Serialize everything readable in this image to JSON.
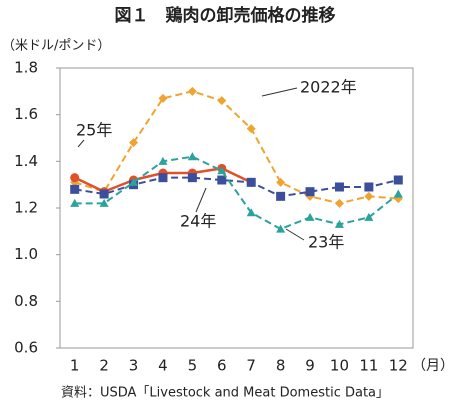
{
  "chart_data": {
    "type": "line",
    "title": "図１　鶏肉の卸売価格の推移",
    "y_label": "（米ドル/ポンド）",
    "x_label": "（月）",
    "source": "資料：USDA「Livestock and Meat Domestic Data」",
    "categories": [
      "1",
      "2",
      "3",
      "4",
      "5",
      "6",
      "7",
      "8",
      "9",
      "10",
      "11",
      "12"
    ],
    "ylim": [
      0.6,
      1.8
    ],
    "yticks": [
      0.6,
      0.8,
      {
        "value": 1.0,
        "label": "1.0"
      },
      1.2,
      1.4,
      1.6,
      1.8
    ],
    "series": [
      {
        "name": "2022年",
        "color": "#f0a32f",
        "marker": "diamond",
        "dash": true,
        "values": [
          1.31,
          1.27,
          1.48,
          1.67,
          1.7,
          1.66,
          1.54,
          1.31,
          1.25,
          1.22,
          1.25,
          1.24
        ]
      },
      {
        "name": "25年",
        "color": "#e0502a",
        "marker": "circle",
        "dash": false,
        "values": [
          1.33,
          1.27,
          1.32,
          1.35,
          1.35,
          1.37,
          1.31,
          null,
          null,
          null,
          null,
          null
        ]
      },
      {
        "name": "24年",
        "color": "#3b4f9c",
        "marker": "square",
        "dash": true,
        "values": [
          1.28,
          1.26,
          1.3,
          1.33,
          1.33,
          1.32,
          1.31,
          1.25,
          1.27,
          1.29,
          1.29,
          1.32
        ]
      },
      {
        "name": "23年",
        "color": "#2aa39b",
        "marker": "triangle",
        "dash": true,
        "values": [
          1.22,
          1.22,
          1.31,
          1.4,
          1.42,
          1.36,
          1.18,
          1.11,
          1.16,
          1.13,
          1.16,
          1.26
        ]
      }
    ]
  }
}
